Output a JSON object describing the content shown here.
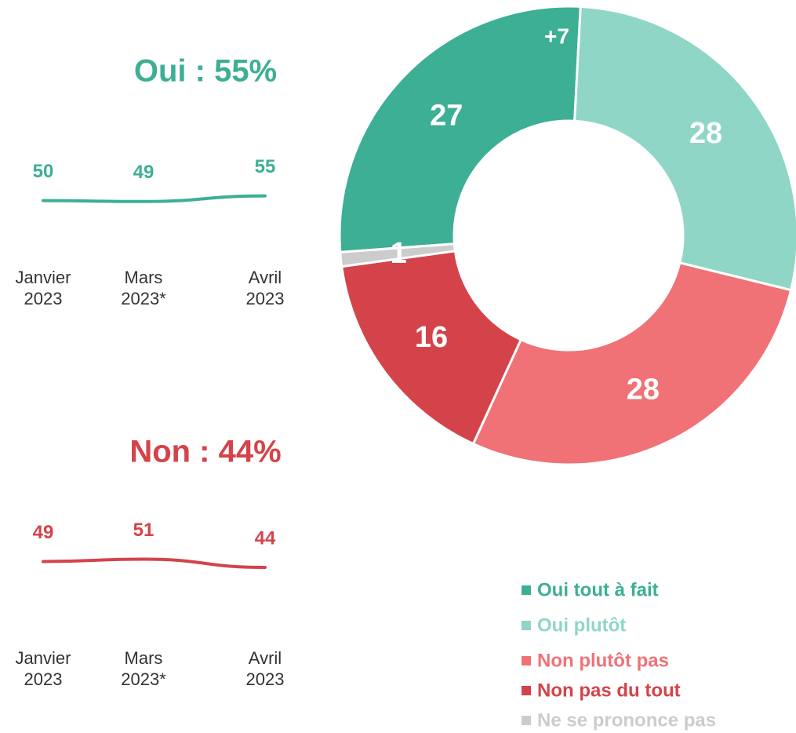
{
  "chart_data": [
    {
      "type": "donut",
      "categories": [
        "Oui tout à fait",
        "Oui plutôt",
        "Non plutôt pas",
        "Non pas du tout",
        "Ne se prononce pas"
      ],
      "values": [
        27,
        28,
        28,
        16,
        1
      ],
      "colors": [
        "#3daf94",
        "#8fd6c7",
        "#f07176",
        "#d4434a",
        "#cccccc"
      ],
      "annotations": [
        "+7"
      ],
      "legend": "bottom-right"
    },
    {
      "type": "line",
      "title": "Oui : 55%",
      "categories": [
        "Janvier 2023",
        "Mars 2023*",
        "Avril 2023"
      ],
      "values": [
        50,
        49,
        55
      ],
      "color": "#3daf94"
    },
    {
      "type": "line",
      "title": "Non : 44%",
      "categories": [
        "Janvier 2023",
        "Mars 2023*",
        "Avril 2023"
      ],
      "values": [
        49,
        51,
        44
      ],
      "color": "#d4434a"
    }
  ]
}
